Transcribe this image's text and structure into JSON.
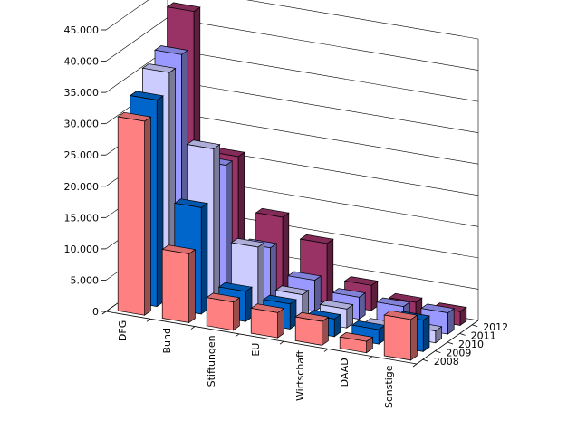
{
  "chart_data": {
    "type": "bar",
    "subtype": "3d-clustered-depth",
    "categories": [
      "DFG",
      "Bund",
      "Stiftungen",
      "EU",
      "Wirtschaft",
      "DAAD",
      "Sonstige"
    ],
    "series": [
      {
        "name": "2008",
        "color": "#ff8080",
        "values": [
          31000,
          11000,
          4500,
          4000,
          3800,
          1800,
          6500
        ]
      },
      {
        "name": "2009",
        "color": "#0066cc",
        "values": [
          33000,
          17000,
          4800,
          4000,
          2800,
          2300,
          5000
        ]
      },
      {
        "name": "2010",
        "color": "#ccccff",
        "values": [
          36000,
          25000,
          10500,
          4100,
          3000,
          1300,
          1900
        ]
      },
      {
        "name": "2011",
        "color": "#9999ff",
        "values": [
          37500,
          21000,
          9000,
          5000,
          3500,
          3200,
          3400
        ]
      },
      {
        "name": "2012",
        "color": "#993366",
        "values": [
          43000,
          21000,
          12500,
          9500,
          4000,
          2500,
          2200
        ]
      }
    ],
    "ylim": [
      0,
      45000
    ],
    "yticks": [
      "0",
      "5.000",
      "10.000",
      "15.000",
      "20.000",
      "25.000",
      "30.000",
      "35.000",
      "40.000",
      "45.000"
    ],
    "grid": true,
    "legend": "none"
  }
}
